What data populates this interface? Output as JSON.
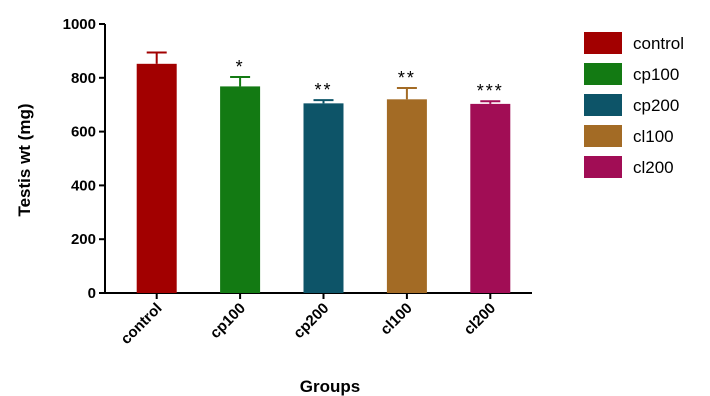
{
  "chart_data": {
    "type": "bar",
    "title": "",
    "xlabel": "Groups",
    "ylabel": "Testis wt (mg)",
    "ylim": [
      0,
      1000
    ],
    "yticks": [
      0,
      200,
      400,
      600,
      800,
      1000
    ],
    "categories": [
      "control",
      "cp100",
      "cp200",
      "cl100",
      "cl200"
    ],
    "values": [
      852,
      768,
      705,
      720,
      703
    ],
    "errors": [
      42,
      35,
      12,
      42,
      10
    ],
    "significance": [
      "",
      "*",
      "**",
      "**",
      "***"
    ],
    "colors": [
      "#a20000",
      "#137a13",
      "#0d5468",
      "#a36b25",
      "#a10d55"
    ],
    "legend": {
      "position": "right",
      "entries": [
        "control",
        "cp100",
        "cp200",
        "cl100",
        "cl200"
      ]
    },
    "grid": false
  }
}
